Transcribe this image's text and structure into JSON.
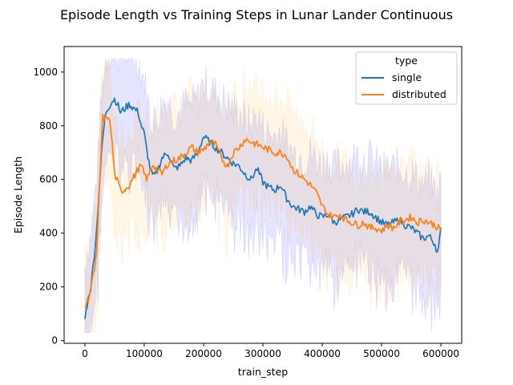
{
  "chart_data": {
    "type": "line",
    "title": "Episode Length vs Training Steps in Lunar Lander Continuous",
    "xlabel": "train_step",
    "ylabel": "Episode Length",
    "xlim": [
      -35000,
      635000
    ],
    "ylim": [
      -10,
      1095
    ],
    "x_ticks": [
      0,
      100000,
      200000,
      300000,
      400000,
      500000,
      600000
    ],
    "x_tick_labels": [
      "0",
      "100000",
      "200000",
      "300000",
      "400000",
      "500000",
      "600000"
    ],
    "y_ticks": [
      0,
      200,
      400,
      600,
      800,
      1000
    ],
    "y_tick_labels": [
      "0",
      "200",
      "400",
      "600",
      "800",
      "1000"
    ],
    "grid": false,
    "legend": {
      "title": "type",
      "placement": "top-right"
    },
    "x": [
      0,
      5000,
      10000,
      15000,
      20000,
      25000,
      30000,
      35000,
      40000,
      45000,
      50000,
      55000,
      60000,
      65000,
      70000,
      75000,
      80000,
      85000,
      90000,
      95000,
      100000,
      105000,
      110000,
      115000,
      120000,
      130000,
      140000,
      150000,
      160000,
      170000,
      180000,
      190000,
      200000,
      210000,
      220000,
      230000,
      240000,
      250000,
      260000,
      270000,
      280000,
      290000,
      300000,
      310000,
      320000,
      330000,
      340000,
      350000,
      360000,
      370000,
      380000,
      390000,
      400000,
      410000,
      420000,
      430000,
      440000,
      450000,
      460000,
      470000,
      480000,
      490000,
      500000,
      510000,
      520000,
      530000,
      540000,
      550000,
      560000,
      570000,
      580000,
      590000,
      595000,
      600000
    ],
    "series": [
      {
        "name": "single",
        "color": "#1f77b4",
        "band_color": "#0000ff",
        "values": [
          80,
          150,
          200,
          300,
          420,
          600,
          750,
          850,
          870,
          890,
          900,
          880,
          850,
          860,
          870,
          880,
          870,
          860,
          850,
          800,
          770,
          700,
          640,
          610,
          620,
          680,
          700,
          640,
          650,
          680,
          670,
          700,
          760,
          740,
          720,
          700,
          680,
          660,
          650,
          620,
          600,
          640,
          590,
          570,
          560,
          580,
          530,
          500,
          490,
          480,
          500,
          470,
          460,
          470,
          440,
          450,
          460,
          470,
          490,
          480,
          480,
          460,
          440,
          430,
          440,
          450,
          430,
          420,
          400,
          380,
          390,
          360,
          320,
          420
        ]
      },
      {
        "name": "distributed",
        "color": "#ff7f0e",
        "band_color": "#ffa500",
        "values": [
          120,
          150,
          200,
          250,
          320,
          600,
          830,
          820,
          840,
          760,
          620,
          590,
          560,
          560,
          570,
          580,
          600,
          620,
          640,
          650,
          620,
          600,
          630,
          660,
          640,
          620,
          660,
          670,
          680,
          700,
          720,
          700,
          710,
          740,
          730,
          680,
          650,
          700,
          720,
          750,
          740,
          730,
          720,
          710,
          700,
          700,
          690,
          640,
          620,
          600,
          580,
          550,
          500,
          470,
          460,
          470,
          450,
          440,
          430,
          440,
          420,
          420,
          410,
          430,
          420,
          440,
          450,
          460,
          440,
          450,
          440,
          430,
          420,
          410
        ]
      }
    ]
  }
}
